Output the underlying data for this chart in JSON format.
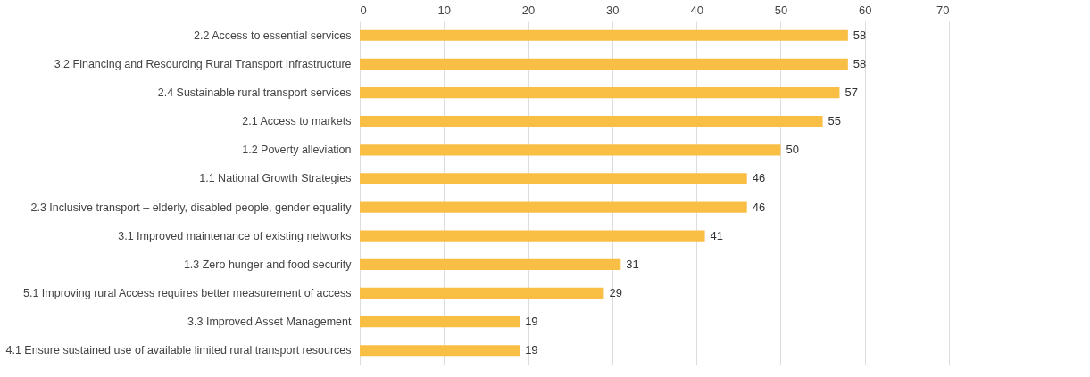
{
  "chart_data": {
    "type": "bar",
    "orientation": "horizontal",
    "categories": [
      "2.2 Access to essential services",
      "3.2 Financing and Resourcing Rural Transport Infrastructure",
      "2.4 Sustainable rural transport services",
      "2.1 Access to markets",
      "1.2 Poverty alleviation",
      "1.1 National Growth Strategies",
      "2.3 Inclusive transport – elderly, disabled people, gender equality",
      "3.1 Improved maintenance of existing networks",
      "1.3 Zero hunger and food security",
      "5.1 Improving rural Access requires better measurement of access",
      "3.3 Improved Asset Management",
      "4.1 Ensure sustained use of available limited rural transport resources"
    ],
    "values": [
      58,
      58,
      57,
      55,
      50,
      46,
      46,
      41,
      31,
      29,
      19,
      19
    ],
    "color": "#f9bf45",
    "xlim": [
      0,
      70
    ],
    "xticks": [
      0,
      10,
      20,
      30,
      40,
      50,
      60,
      70
    ],
    "grid": "x",
    "data_labels": true
  }
}
